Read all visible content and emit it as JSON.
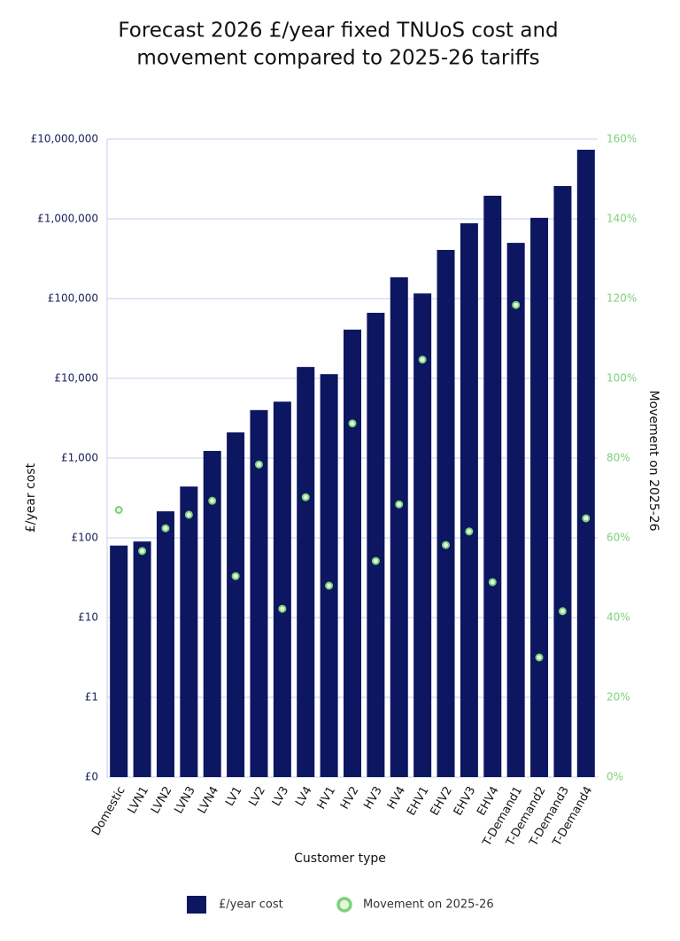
{
  "chart_data": {
    "type": "bar",
    "title": [
      "Forecast  2026 £/year fixed TNUoS cost and",
      "movement compared to 2025-26 tariffs"
    ],
    "x_label": "Customer type",
    "y_label": "£/year cost",
    "y2_label": "Movement on 2025-26",
    "categories": [
      "Domestic",
      "LVN1",
      "LVN2",
      "LVN3",
      "LVN4",
      "LV1",
      "LV2",
      "LV3",
      "LV4",
      "HV1",
      "HV2",
      "HV3",
      "HV4",
      "EHV1",
      "EHV2",
      "EHV3",
      "EHV4",
      "T-Demand1",
      "T-Demand2",
      "T-Demand3",
      "T-Demand4"
    ],
    "series": [
      {
        "name": "£/year cost",
        "type": "bar",
        "color": "#0d1660",
        "values": [
          80,
          90,
          215,
          440,
          1230,
          2100,
          4000,
          5100,
          13900,
          11300,
          40800,
          66400,
          185000,
          116000,
          408000,
          880000,
          1950000,
          500000,
          1030000,
          2580000,
          7360000
        ]
      },
      {
        "name": "Movement on 2025-26",
        "type": "scatter",
        "axis": "y2",
        "color": "#7ed07a",
        "values": [
          67,
          56.7,
          62.4,
          65.8,
          69.3,
          50.4,
          78.4,
          42.2,
          70.2,
          48,
          88.7,
          54.2,
          68.4,
          104.7,
          58.2,
          61.6,
          48.9,
          118.4,
          30,
          41.6,
          64.9
        ]
      }
    ],
    "ylog": true,
    "ylim": [
      0.1,
      10000000
    ],
    "yticks": [
      {
        "value": 0.1,
        "label": "£0"
      },
      {
        "value": 1,
        "label": "£1"
      },
      {
        "value": 10,
        "label": "£10"
      },
      {
        "value": 100,
        "label": "£100"
      },
      {
        "value": 1000,
        "label": "£1,000"
      },
      {
        "value": 10000,
        "label": "£10,000"
      },
      {
        "value": 100000,
        "label": "£100,000"
      },
      {
        "value": 1000000,
        "label": "£1,000,000"
      },
      {
        "value": 10000000,
        "label": "£10,000,000"
      }
    ],
    "y2lim": [
      0,
      160
    ],
    "y2ticks": [
      {
        "value": 0,
        "label": "0%"
      },
      {
        "value": 20,
        "label": "20%"
      },
      {
        "value": 40,
        "label": "40%"
      },
      {
        "value": 60,
        "label": "60%"
      },
      {
        "value": 80,
        "label": "80%"
      },
      {
        "value": 100,
        "label": "100%"
      },
      {
        "value": 120,
        "label": "120%"
      },
      {
        "value": 140,
        "label": "140%"
      },
      {
        "value": 160,
        "label": "160%"
      }
    ],
    "grid": true,
    "legend": "bottom"
  }
}
